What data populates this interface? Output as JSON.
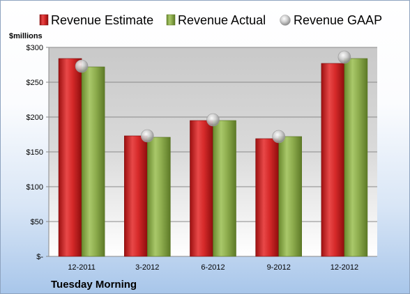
{
  "chart_data": {
    "type": "bar",
    "company": "Tuesday Morning",
    "unit_label": "$millions",
    "categories": [
      "12-2011",
      "3-2012",
      "6-2012",
      "9-2012",
      "12-2012"
    ],
    "series": [
      {
        "name": "Revenue Estimate",
        "kind": "bar",
        "color": "#d42a2a",
        "values": [
          284,
          173,
          195,
          169,
          277
        ]
      },
      {
        "name": "Revenue Actual",
        "kind": "bar",
        "color": "#8fae4f",
        "values": [
          272,
          171,
          195,
          172,
          284
        ]
      },
      {
        "name": "Revenue GAAP",
        "kind": "marker",
        "color": "#b8b8b8",
        "values": [
          273,
          173,
          196,
          172,
          286
        ]
      }
    ],
    "ylim": [
      0,
      300
    ],
    "yticks": [
      0,
      50,
      100,
      150,
      200,
      250,
      300
    ],
    "ytick_labels": [
      "$-",
      "$50",
      "$100",
      "$150",
      "$200",
      "$250",
      "$300"
    ],
    "grid": true,
    "legend_position": "top"
  }
}
